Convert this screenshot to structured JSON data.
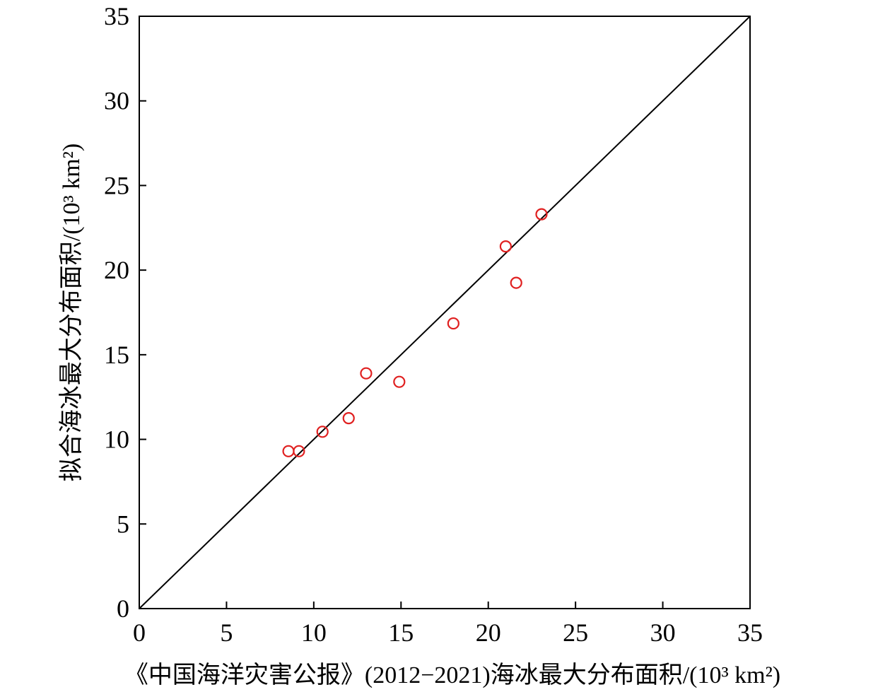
{
  "chart_data": {
    "type": "scatter",
    "x_label": "《中国海洋灾害公报》(2012−2021)海冰最大分布面积/(10³ km²)",
    "y_label": "拟合海冰最大分布面积/(10³ km²)",
    "x": [
      8.55,
      9.15,
      10.5,
      12.0,
      13.0,
      14.9,
      18.0,
      21.0,
      21.6,
      23.05
    ],
    "values": [
      9.3,
      9.3,
      10.45,
      11.25,
      13.9,
      13.4,
      16.85,
      21.4,
      19.25,
      23.3
    ],
    "color": "#e02020",
    "xlim": [
      0,
      35
    ],
    "ylim": [
      0,
      35
    ],
    "xticks": [
      0,
      5,
      10,
      15,
      20,
      25,
      30,
      35
    ],
    "yticks": [
      0,
      5,
      10,
      15,
      20,
      25,
      30,
      35
    ]
  }
}
